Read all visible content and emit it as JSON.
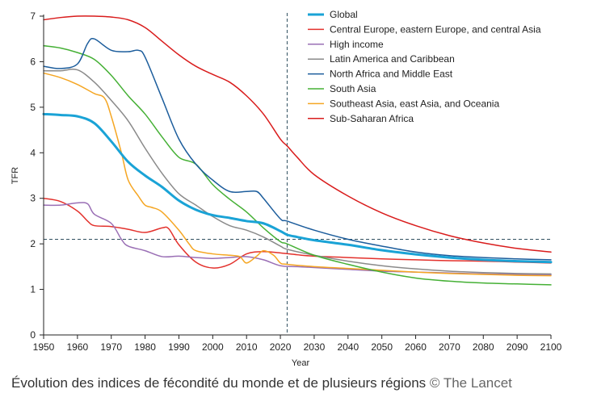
{
  "chart_data": {
    "type": "line",
    "xlabel": "Year",
    "ylabel": "TFR",
    "xlim": [
      1950,
      2100
    ],
    "ylim": [
      0,
      7
    ],
    "xticks": [
      1950,
      1960,
      1970,
      1980,
      1990,
      2000,
      2010,
      2020,
      2030,
      2040,
      2050,
      2060,
      2070,
      2080,
      2090,
      2100
    ],
    "yticks": [
      0,
      1,
      2,
      3,
      4,
      5,
      6,
      7
    ],
    "reference_lines": {
      "vertical_x": 2022,
      "horizontal_y": 2.1
    },
    "legend_position": "top-right",
    "series": [
      {
        "name": "Global",
        "color": "#1aa3d6",
        "width": 3,
        "points": [
          [
            1950,
            4.85
          ],
          [
            1955,
            4.83
          ],
          [
            1960,
            4.8
          ],
          [
            1965,
            4.65
          ],
          [
            1970,
            4.25
          ],
          [
            1975,
            3.8
          ],
          [
            1980,
            3.5
          ],
          [
            1985,
            3.25
          ],
          [
            1990,
            2.95
          ],
          [
            1995,
            2.75
          ],
          [
            2000,
            2.63
          ],
          [
            2005,
            2.57
          ],
          [
            2010,
            2.5
          ],
          [
            2015,
            2.45
          ],
          [
            2020,
            2.28
          ],
          [
            2022,
            2.2
          ],
          [
            2025,
            2.15
          ],
          [
            2030,
            2.08
          ],
          [
            2040,
            1.98
          ],
          [
            2050,
            1.86
          ],
          [
            2060,
            1.77
          ],
          [
            2070,
            1.7
          ],
          [
            2080,
            1.65
          ],
          [
            2090,
            1.62
          ],
          [
            2100,
            1.6
          ]
        ]
      },
      {
        "name": "Central Europe, eastern Europe, and central Asia",
        "color": "#e3312c",
        "width": 1.5,
        "points": [
          [
            1950,
            3.0
          ],
          [
            1955,
            2.93
          ],
          [
            1960,
            2.72
          ],
          [
            1963,
            2.5
          ],
          [
            1965,
            2.4
          ],
          [
            1970,
            2.38
          ],
          [
            1975,
            2.32
          ],
          [
            1980,
            2.25
          ],
          [
            1985,
            2.35
          ],
          [
            1987,
            2.33
          ],
          [
            1990,
            1.98
          ],
          [
            1995,
            1.6
          ],
          [
            2000,
            1.47
          ],
          [
            2005,
            1.55
          ],
          [
            2010,
            1.78
          ],
          [
            2015,
            1.83
          ],
          [
            2020,
            1.8
          ],
          [
            2025,
            1.76
          ],
          [
            2030,
            1.73
          ],
          [
            2040,
            1.7
          ],
          [
            2050,
            1.67
          ],
          [
            2060,
            1.65
          ],
          [
            2070,
            1.63
          ],
          [
            2080,
            1.62
          ],
          [
            2090,
            1.6
          ],
          [
            2100,
            1.58
          ]
        ]
      },
      {
        "name": "High income",
        "color": "#9a6fb5",
        "width": 1.5,
        "points": [
          [
            1950,
            2.85
          ],
          [
            1955,
            2.85
          ],
          [
            1960,
            2.9
          ],
          [
            1963,
            2.88
          ],
          [
            1965,
            2.65
          ],
          [
            1970,
            2.45
          ],
          [
            1973,
            2.1
          ],
          [
            1975,
            1.95
          ],
          [
            1980,
            1.85
          ],
          [
            1985,
            1.72
          ],
          [
            1990,
            1.73
          ],
          [
            1995,
            1.7
          ],
          [
            2000,
            1.68
          ],
          [
            2005,
            1.7
          ],
          [
            2010,
            1.72
          ],
          [
            2015,
            1.65
          ],
          [
            2020,
            1.52
          ],
          [
            2025,
            1.5
          ],
          [
            2030,
            1.48
          ],
          [
            2040,
            1.44
          ],
          [
            2050,
            1.4
          ],
          [
            2060,
            1.38
          ],
          [
            2070,
            1.36
          ],
          [
            2080,
            1.34
          ],
          [
            2090,
            1.33
          ],
          [
            2100,
            1.32
          ]
        ]
      },
      {
        "name": "Latin America and Caribbean",
        "color": "#8a8a8a",
        "width": 1.5,
        "points": [
          [
            1950,
            5.8
          ],
          [
            1955,
            5.8
          ],
          [
            1960,
            5.82
          ],
          [
            1965,
            5.55
          ],
          [
            1970,
            5.15
          ],
          [
            1975,
            4.7
          ],
          [
            1980,
            4.1
          ],
          [
            1985,
            3.55
          ],
          [
            1990,
            3.1
          ],
          [
            1995,
            2.85
          ],
          [
            2000,
            2.6
          ],
          [
            2005,
            2.4
          ],
          [
            2010,
            2.3
          ],
          [
            2015,
            2.15
          ],
          [
            2020,
            1.95
          ],
          [
            2022,
            1.88
          ],
          [
            2030,
            1.75
          ],
          [
            2040,
            1.62
          ],
          [
            2050,
            1.52
          ],
          [
            2060,
            1.45
          ],
          [
            2070,
            1.4
          ],
          [
            2080,
            1.37
          ],
          [
            2090,
            1.35
          ],
          [
            2100,
            1.34
          ]
        ]
      },
      {
        "name": "North Africa and Middle East",
        "color": "#1c5d9c",
        "width": 1.5,
        "points": [
          [
            1950,
            5.9
          ],
          [
            1955,
            5.85
          ],
          [
            1960,
            5.95
          ],
          [
            1963,
            6.4
          ],
          [
            1965,
            6.5
          ],
          [
            1970,
            6.25
          ],
          [
            1975,
            6.22
          ],
          [
            1978,
            6.25
          ],
          [
            1980,
            6.1
          ],
          [
            1985,
            5.2
          ],
          [
            1990,
            4.3
          ],
          [
            1995,
            3.75
          ],
          [
            2000,
            3.4
          ],
          [
            2005,
            3.15
          ],
          [
            2010,
            3.15
          ],
          [
            2013,
            3.15
          ],
          [
            2015,
            3.0
          ],
          [
            2020,
            2.55
          ],
          [
            2022,
            2.5
          ],
          [
            2030,
            2.3
          ],
          [
            2040,
            2.1
          ],
          [
            2050,
            1.95
          ],
          [
            2060,
            1.82
          ],
          [
            2070,
            1.74
          ],
          [
            2080,
            1.7
          ],
          [
            2090,
            1.67
          ],
          [
            2100,
            1.65
          ]
        ]
      },
      {
        "name": "South Asia",
        "color": "#45b035",
        "width": 1.5,
        "points": [
          [
            1950,
            6.35
          ],
          [
            1955,
            6.3
          ],
          [
            1960,
            6.2
          ],
          [
            1965,
            6.05
          ],
          [
            1970,
            5.7
          ],
          [
            1975,
            5.25
          ],
          [
            1980,
            4.85
          ],
          [
            1985,
            4.35
          ],
          [
            1990,
            3.9
          ],
          [
            1995,
            3.75
          ],
          [
            2000,
            3.3
          ],
          [
            2005,
            2.98
          ],
          [
            2010,
            2.7
          ],
          [
            2015,
            2.35
          ],
          [
            2020,
            2.05
          ],
          [
            2022,
            2.0
          ],
          [
            2030,
            1.75
          ],
          [
            2040,
            1.55
          ],
          [
            2050,
            1.38
          ],
          [
            2060,
            1.25
          ],
          [
            2070,
            1.18
          ],
          [
            2080,
            1.14
          ],
          [
            2090,
            1.12
          ],
          [
            2100,
            1.1
          ]
        ]
      },
      {
        "name": "Southeast Asia, east Asia, and Oceania",
        "color": "#f5a623",
        "width": 1.5,
        "points": [
          [
            1950,
            5.75
          ],
          [
            1955,
            5.65
          ],
          [
            1960,
            5.5
          ],
          [
            1965,
            5.3
          ],
          [
            1968,
            5.2
          ],
          [
            1970,
            4.8
          ],
          [
            1973,
            4.0
          ],
          [
            1975,
            3.4
          ],
          [
            1978,
            3.05
          ],
          [
            1980,
            2.85
          ],
          [
            1982,
            2.8
          ],
          [
            1985,
            2.7
          ],
          [
            1990,
            2.3
          ],
          [
            1993,
            2.0
          ],
          [
            1995,
            1.85
          ],
          [
            2000,
            1.78
          ],
          [
            2005,
            1.75
          ],
          [
            2008,
            1.72
          ],
          [
            2010,
            1.58
          ],
          [
            2013,
            1.73
          ],
          [
            2015,
            1.85
          ],
          [
            2018,
            1.75
          ],
          [
            2020,
            1.58
          ],
          [
            2022,
            1.55
          ],
          [
            2030,
            1.5
          ],
          [
            2040,
            1.46
          ],
          [
            2050,
            1.42
          ],
          [
            2060,
            1.38
          ],
          [
            2070,
            1.35
          ],
          [
            2080,
            1.33
          ],
          [
            2090,
            1.31
          ],
          [
            2100,
            1.3
          ]
        ]
      },
      {
        "name": "Sub-Saharan Africa",
        "color": "#d91c1c",
        "width": 1.5,
        "points": [
          [
            1950,
            6.92
          ],
          [
            1955,
            6.97
          ],
          [
            1960,
            7.0
          ],
          [
            1965,
            7.0
          ],
          [
            1970,
            6.98
          ],
          [
            1975,
            6.92
          ],
          [
            1980,
            6.75
          ],
          [
            1985,
            6.45
          ],
          [
            1990,
            6.15
          ],
          [
            1995,
            5.9
          ],
          [
            2000,
            5.72
          ],
          [
            2005,
            5.55
          ],
          [
            2010,
            5.25
          ],
          [
            2015,
            4.85
          ],
          [
            2020,
            4.3
          ],
          [
            2022,
            4.15
          ],
          [
            2025,
            3.9
          ],
          [
            2030,
            3.52
          ],
          [
            2040,
            3.05
          ],
          [
            2050,
            2.68
          ],
          [
            2060,
            2.4
          ],
          [
            2070,
            2.18
          ],
          [
            2080,
            2.02
          ],
          [
            2090,
            1.9
          ],
          [
            2100,
            1.82
          ]
        ]
      }
    ]
  },
  "caption": {
    "text": "Évolution des indices de fécondité du monde et de plusieurs régions",
    "credit": "© The Lancet"
  }
}
